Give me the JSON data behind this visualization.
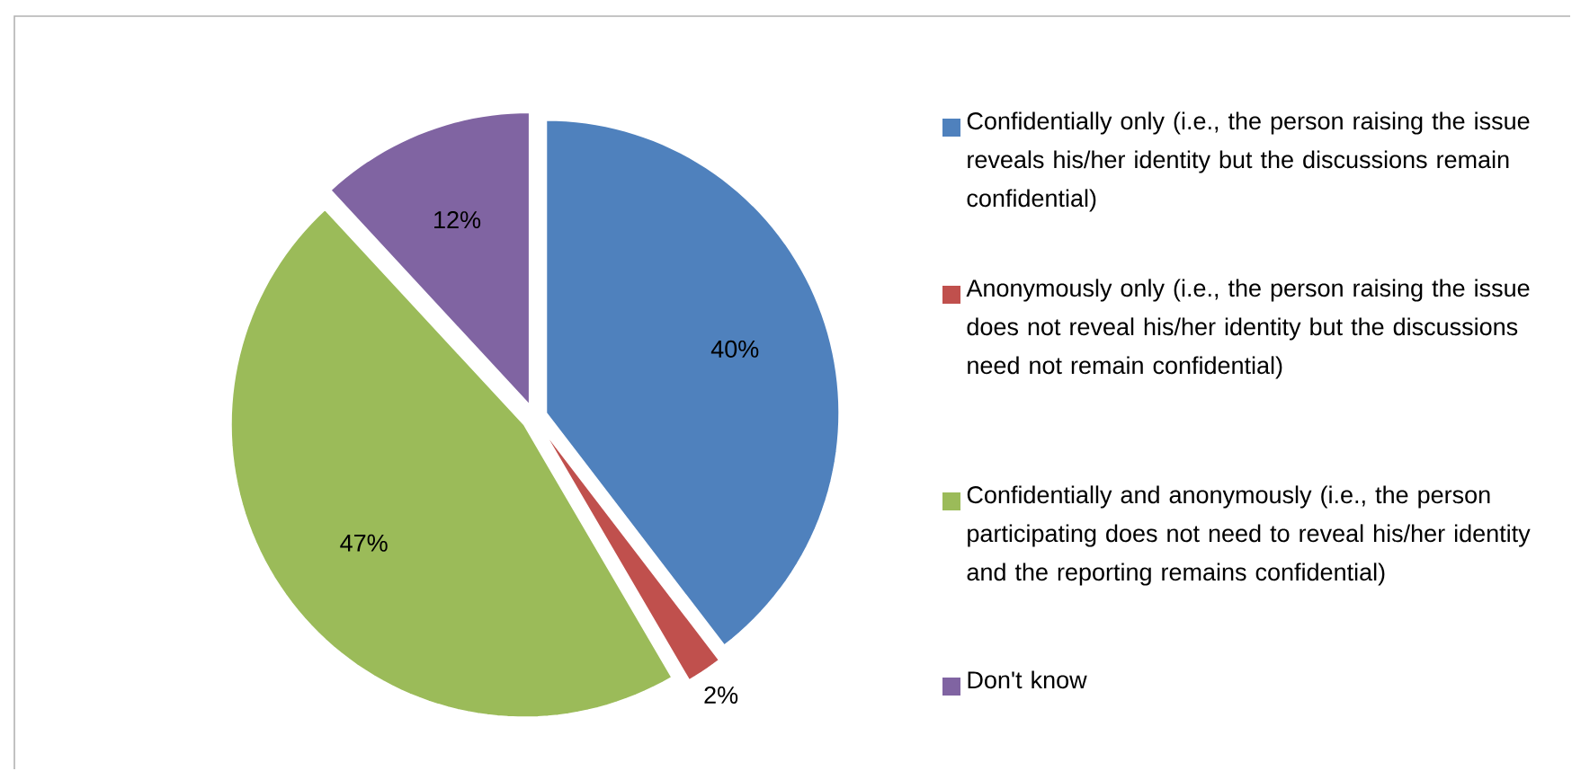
{
  "chart_data": {
    "type": "pie",
    "categories": [
      "Confidentially only (i.e., the person raising the issue reveals his/her identity but the discussions remain confidential)",
      "Anonymously only (i.e., the person raising the issue does not reveal his/her identity but the discussions need not remain confidential)",
      "Confidentially and anonymously (i.e., the person participating does not need to reveal his/her identity and the reporting remains confidential)",
      "Don't know"
    ],
    "values": [
      40,
      2,
      47,
      12
    ],
    "colors": [
      "#4f81bd",
      "#c0504d",
      "#9bbb59",
      "#8064a2"
    ],
    "value_labels": [
      "40%",
      "2%",
      "47%",
      "12%"
    ],
    "legend": "right"
  }
}
